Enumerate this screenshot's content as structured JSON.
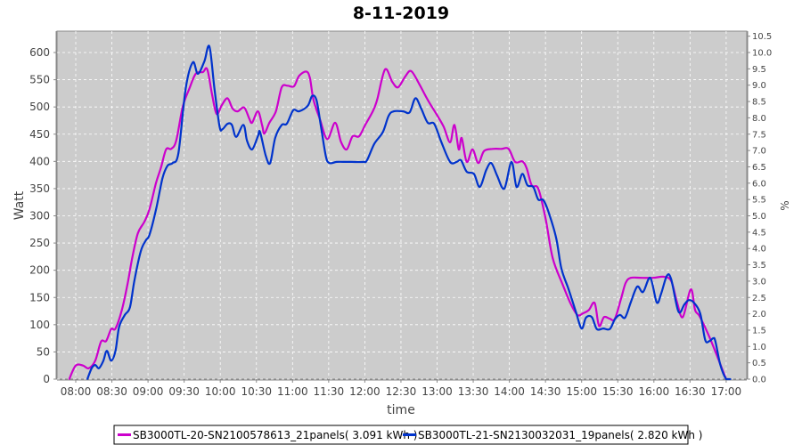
{
  "chart_data": {
    "type": "line",
    "title": "8-11-2019",
    "xlabel": "time",
    "ylabel": "Watt",
    "y2label": "%",
    "ylim": [
      0,
      640
    ],
    "y2lim": [
      0,
      10.67
    ],
    "xlim_hours": [
      7.74,
      17.28
    ],
    "grid": true,
    "legend_position": "bottom",
    "x_ticks": [
      "08:00",
      "08:30",
      "09:00",
      "09:30",
      "10:00",
      "10:30",
      "11:00",
      "11:30",
      "12:00",
      "12:30",
      "13:00",
      "13:30",
      "14:00",
      "14:30",
      "15:00",
      "15:30",
      "16:00",
      "16:30",
      "17:00"
    ],
    "y_ticks": [
      "0",
      "50",
      "100",
      "150",
      "200",
      "250",
      "300",
      "350",
      "400",
      "450",
      "500",
      "550",
      "600"
    ],
    "y2_ticks": [
      "0.0",
      "0.5",
      "1.0",
      "1.5",
      "2.0",
      "2.5",
      "3.0",
      "3.5",
      "4.0",
      "4.5",
      "5.0",
      "5.5",
      "6.0",
      "6.5",
      "7.0",
      "7.5",
      "8.0",
      "8.5",
      "9.0",
      "9.5",
      "10.0",
      "10.5"
    ],
    "series": [
      {
        "name": "SB3000TL-20-SN2100578613_21panels( 3.091 kWh )",
        "color": "#cc00cc",
        "points": [
          [
            7.91,
            0
          ],
          [
            8.0,
            25
          ],
          [
            8.1,
            25
          ],
          [
            8.18,
            20
          ],
          [
            8.27,
            34
          ],
          [
            8.35,
            69
          ],
          [
            8.42,
            70
          ],
          [
            8.49,
            92
          ],
          [
            8.55,
            93
          ],
          [
            8.64,
            128
          ],
          [
            8.72,
            177
          ],
          [
            8.78,
            222
          ],
          [
            8.86,
            268
          ],
          [
            8.95,
            289
          ],
          [
            9.02,
            312
          ],
          [
            9.11,
            360
          ],
          [
            9.18,
            389
          ],
          [
            9.25,
            422
          ],
          [
            9.32,
            423
          ],
          [
            9.39,
            438
          ],
          [
            9.48,
            500
          ],
          [
            9.57,
            533
          ],
          [
            9.66,
            561
          ],
          [
            9.76,
            564
          ],
          [
            9.82,
            569
          ],
          [
            9.89,
            520
          ],
          [
            9.95,
            487
          ],
          [
            10.02,
            503
          ],
          [
            10.1,
            516
          ],
          [
            10.17,
            497
          ],
          [
            10.24,
            492
          ],
          [
            10.33,
            499
          ],
          [
            10.4,
            479
          ],
          [
            10.44,
            471
          ],
          [
            10.52,
            492
          ],
          [
            10.58,
            466
          ],
          [
            10.61,
            451
          ],
          [
            10.68,
            471
          ],
          [
            10.77,
            492
          ],
          [
            10.85,
            536
          ],
          [
            10.93,
            539
          ],
          [
            11.02,
            538
          ],
          [
            11.09,
            557
          ],
          [
            11.19,
            565
          ],
          [
            11.24,
            553
          ],
          [
            11.29,
            513
          ],
          [
            11.38,
            477
          ],
          [
            11.48,
            441
          ],
          [
            11.59,
            471
          ],
          [
            11.67,
            436
          ],
          [
            11.75,
            422
          ],
          [
            11.83,
            446
          ],
          [
            11.92,
            446
          ],
          [
            12.01,
            468
          ],
          [
            12.11,
            492
          ],
          [
            12.17,
            513
          ],
          [
            12.28,
            569
          ],
          [
            12.38,
            546
          ],
          [
            12.46,
            536
          ],
          [
            12.56,
            556
          ],
          [
            12.64,
            566
          ],
          [
            12.75,
            543
          ],
          [
            12.87,
            513
          ],
          [
            12.99,
            487
          ],
          [
            13.09,
            464
          ],
          [
            13.18,
            435
          ],
          [
            13.24,
            467
          ],
          [
            13.3,
            422
          ],
          [
            13.34,
            443
          ],
          [
            13.41,
            399
          ],
          [
            13.49,
            422
          ],
          [
            13.57,
            397
          ],
          [
            13.65,
            419
          ],
          [
            13.77,
            423
          ],
          [
            13.89,
            423
          ],
          [
            13.99,
            423
          ],
          [
            14.08,
            399
          ],
          [
            14.18,
            400
          ],
          [
            14.24,
            387
          ],
          [
            14.31,
            356
          ],
          [
            14.4,
            350
          ],
          [
            14.5,
            296
          ],
          [
            14.6,
            222
          ],
          [
            14.74,
            173
          ],
          [
            14.84,
            141
          ],
          [
            14.94,
            118
          ],
          [
            15.02,
            121
          ],
          [
            15.1,
            127
          ],
          [
            15.18,
            140
          ],
          [
            15.24,
            98
          ],
          [
            15.31,
            114
          ],
          [
            15.39,
            111
          ],
          [
            15.46,
            111
          ],
          [
            15.55,
            150
          ],
          [
            15.61,
            177
          ],
          [
            15.68,
            186
          ],
          [
            15.83,
            186
          ],
          [
            15.99,
            186
          ],
          [
            16.14,
            188
          ],
          [
            16.24,
            180
          ],
          [
            16.32,
            141
          ],
          [
            16.4,
            114
          ],
          [
            16.51,
            165
          ],
          [
            16.57,
            127
          ],
          [
            16.63,
            116
          ],
          [
            16.75,
            83
          ],
          [
            16.85,
            51
          ],
          [
            16.96,
            13
          ],
          [
            17.0,
            0
          ]
        ]
      },
      {
        "name": "SB3000TL-21-SN2130032031_19panels( 2.820 kWh )",
        "color": "#0033cc",
        "points": [
          [
            8.16,
            0
          ],
          [
            8.22,
            20
          ],
          [
            8.27,
            26
          ],
          [
            8.32,
            20
          ],
          [
            8.38,
            33
          ],
          [
            8.43,
            52
          ],
          [
            8.49,
            34
          ],
          [
            8.55,
            52
          ],
          [
            8.6,
            96
          ],
          [
            8.68,
            118
          ],
          [
            8.75,
            132
          ],
          [
            8.81,
            180
          ],
          [
            8.9,
            235
          ],
          [
            8.97,
            255
          ],
          [
            9.02,
            265
          ],
          [
            9.11,
            311
          ],
          [
            9.2,
            369
          ],
          [
            9.27,
            392
          ],
          [
            9.34,
            397
          ],
          [
            9.42,
            415
          ],
          [
            9.52,
            533
          ],
          [
            9.62,
            582
          ],
          [
            9.69,
            561
          ],
          [
            9.78,
            584
          ],
          [
            9.85,
            611
          ],
          [
            9.92,
            533
          ],
          [
            9.99,
            464
          ],
          [
            10.03,
            459
          ],
          [
            10.1,
            469
          ],
          [
            10.16,
            467
          ],
          [
            10.22,
            445
          ],
          [
            10.32,
            467
          ],
          [
            10.37,
            438
          ],
          [
            10.44,
            422
          ],
          [
            10.52,
            446
          ],
          [
            10.55,
            454
          ],
          [
            10.63,
            410
          ],
          [
            10.69,
            397
          ],
          [
            10.76,
            443
          ],
          [
            10.85,
            467
          ],
          [
            10.92,
            469
          ],
          [
            11.01,
            494
          ],
          [
            11.09,
            492
          ],
          [
            11.21,
            502
          ],
          [
            11.27,
            520
          ],
          [
            11.33,
            513
          ],
          [
            11.39,
            467
          ],
          [
            11.46,
            410
          ],
          [
            11.51,
            397
          ],
          [
            11.61,
            399
          ],
          [
            11.74,
            399
          ],
          [
            11.82,
            399
          ],
          [
            11.98,
            399
          ],
          [
            12.03,
            402
          ],
          [
            12.13,
            432
          ],
          [
            12.25,
            454
          ],
          [
            12.33,
            484
          ],
          [
            12.4,
            492
          ],
          [
            12.53,
            492
          ],
          [
            12.62,
            490
          ],
          [
            12.7,
            516
          ],
          [
            12.78,
            497
          ],
          [
            12.87,
            471
          ],
          [
            12.96,
            469
          ],
          [
            13.06,
            435
          ],
          [
            13.18,
            399
          ],
          [
            13.27,
            399
          ],
          [
            13.33,
            402
          ],
          [
            13.41,
            381
          ],
          [
            13.51,
            377
          ],
          [
            13.59,
            353
          ],
          [
            13.68,
            384
          ],
          [
            13.75,
            397
          ],
          [
            13.83,
            374
          ],
          [
            13.93,
            350
          ],
          [
            14.03,
            399
          ],
          [
            14.1,
            353
          ],
          [
            14.18,
            377
          ],
          [
            14.25,
            356
          ],
          [
            14.33,
            353
          ],
          [
            14.4,
            330
          ],
          [
            14.47,
            329
          ],
          [
            14.55,
            304
          ],
          [
            14.65,
            258
          ],
          [
            14.72,
            203
          ],
          [
            14.82,
            165
          ],
          [
            14.92,
            124
          ],
          [
            15.0,
            93
          ],
          [
            15.06,
            113
          ],
          [
            15.14,
            114
          ],
          [
            15.21,
            92
          ],
          [
            15.3,
            93
          ],
          [
            15.39,
            92
          ],
          [
            15.46,
            110
          ],
          [
            15.53,
            118
          ],
          [
            15.6,
            113
          ],
          [
            15.68,
            141
          ],
          [
            15.77,
            170
          ],
          [
            15.85,
            160
          ],
          [
            15.95,
            186
          ],
          [
            16.04,
            141
          ],
          [
            16.1,
            157
          ],
          [
            16.18,
            190
          ],
          [
            16.24,
            183
          ],
          [
            16.34,
            124
          ],
          [
            16.42,
            137
          ],
          [
            16.48,
            145
          ],
          [
            16.55,
            141
          ],
          [
            16.64,
            121
          ],
          [
            16.71,
            72
          ],
          [
            16.77,
            70
          ],
          [
            16.82,
            75
          ],
          [
            16.85,
            70
          ],
          [
            16.92,
            26
          ],
          [
            17.0,
            0
          ],
          [
            17.06,
            0
          ]
        ]
      }
    ]
  }
}
